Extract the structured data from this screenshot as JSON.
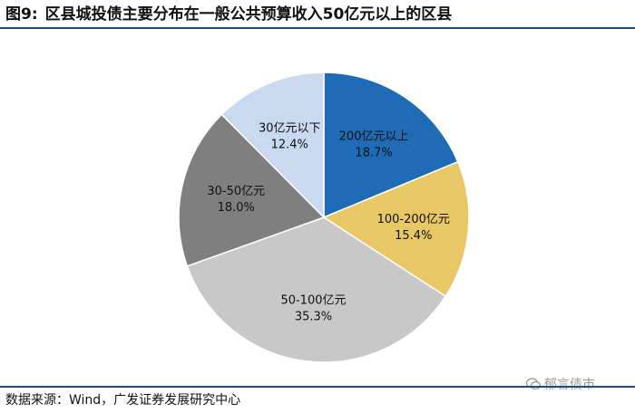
{
  "header": {
    "figure_number": "图9:",
    "title": "区县城投债主要分布在一般公共预算收入50亿元以上的区县"
  },
  "footer": {
    "source": "数据来源：Wind，广发证券发展研究中心"
  },
  "watermark": {
    "text": "郁言债市",
    "icon": "wechat-icon"
  },
  "chart_data": {
    "type": "pie",
    "start_angle_deg": 0,
    "direction": "clockwise",
    "slices": [
      {
        "label": "200亿元以上",
        "value": 18.7,
        "value_label": "18.7%",
        "color": "#1f6bb5",
        "text_color": "#111111"
      },
      {
        "label": "100-200亿元",
        "value": 15.4,
        "value_label": "15.4%",
        "color": "#e8c766",
        "text_color": "#111111"
      },
      {
        "label": "50-100亿元",
        "value": 35.3,
        "value_label": "35.3%",
        "color": "#c8c8c8",
        "text_color": "#111111"
      },
      {
        "label": "30-50亿元",
        "value": 18.0,
        "value_label": "18.0%",
        "color": "#7f7f7f",
        "text_color": "#111111"
      },
      {
        "label": "30亿元以下",
        "value": 12.4,
        "value_label": "12.4%",
        "color": "#c9d9ef",
        "text_color": "#111111"
      }
    ]
  }
}
